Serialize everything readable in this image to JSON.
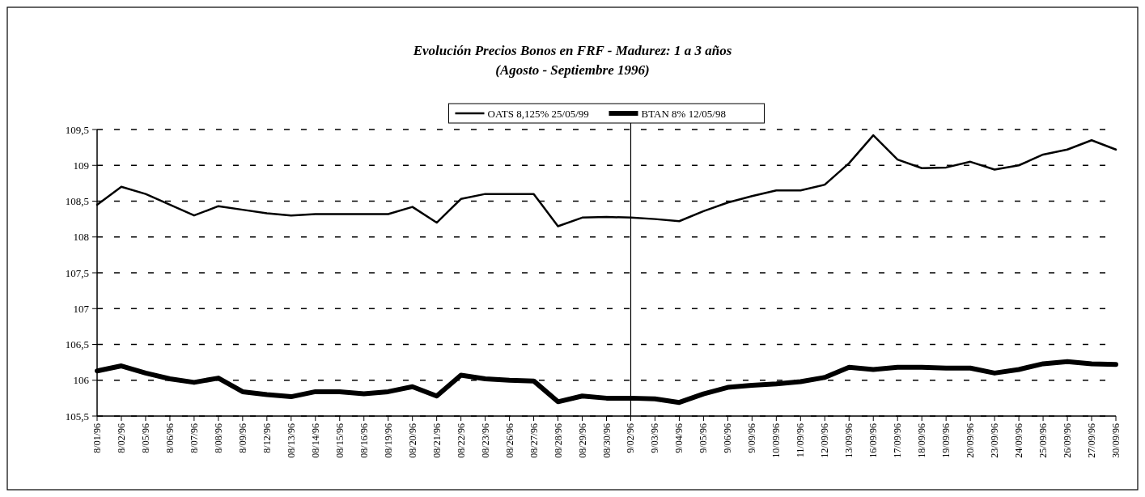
{
  "chart_data": {
    "type": "line",
    "title": "Evolución Precios Bonos en FRF - Madurez: 1 a 3 años",
    "subtitle": "(Agosto - Septiembre 1996)",
    "categories": [
      "8/01/96",
      "8/02/96",
      "8/05/96",
      "8/06/96",
      "8/07/96",
      "8/08/96",
      "8/09/96",
      "8/12/96",
      "08/13/96",
      "08/14/96",
      "08/15/96",
      "08/16/96",
      "08/19/96",
      "08/20/96",
      "08/21/96",
      "08/22/96",
      "08/23/96",
      "08/26/96",
      "08/27/96",
      "08/28/96",
      "08/29/96",
      "08/30/96",
      "9/02/96",
      "9/03/96",
      "9/04/96",
      "9/05/96",
      "9/06/96",
      "9/09/96",
      "10/09/96",
      "11/09/96",
      "12/09/96",
      "13/09/96",
      "16/09/96",
      "17/09/96",
      "18/09/96",
      "19/09/96",
      "20/09/96",
      "23/09/96",
      "24/09/96",
      "25/09/96",
      "26/09/96",
      "27/09/96",
      "30/09/96"
    ],
    "series": [
      {
        "name": "OATS 8,125% 25/05/99",
        "color": "#000000",
        "values": [
          108.45,
          108.7,
          108.6,
          108.45,
          108.3,
          108.43,
          108.38,
          108.33,
          108.3,
          108.32,
          108.32,
          108.32,
          108.32,
          108.42,
          108.2,
          108.53,
          108.6,
          108.6,
          108.6,
          108.15,
          108.27,
          108.28,
          108.27,
          108.25,
          108.22,
          108.36,
          108.48,
          108.57,
          108.65,
          108.65,
          108.73,
          109.03,
          109.42,
          109.08,
          108.96,
          108.97,
          109.05,
          108.94,
          109.0,
          109.15,
          109.22,
          109.35,
          109.22
        ]
      },
      {
        "name": "BTAN 8% 12/05/98",
        "color": "#000000",
        "values": [
          106.13,
          106.2,
          106.1,
          106.02,
          105.97,
          106.03,
          105.84,
          105.8,
          105.77,
          105.84,
          105.84,
          105.81,
          105.84,
          105.91,
          105.78,
          106.07,
          106.02,
          106.0,
          105.99,
          105.7,
          105.78,
          105.75,
          105.75,
          105.74,
          105.69,
          105.81,
          105.9,
          105.93,
          105.95,
          105.98,
          106.04,
          106.18,
          106.15,
          106.18,
          106.18,
          106.17,
          106.17,
          106.1,
          106.15,
          106.23,
          106.26,
          106.23,
          106.22
        ]
      }
    ],
    "ylim": [
      105.5,
      109.5
    ],
    "yticks": [
      {
        "value": 105.5,
        "label": "105,5"
      },
      106,
      {
        "value": 106.5,
        "label": "106,5"
      },
      107,
      {
        "value": 107.5,
        "label": "107,5"
      },
      108,
      {
        "value": 108.5,
        "label": "108,5"
      },
      109,
      {
        "value": 109.5,
        "label": "109,5"
      }
    ],
    "grid": "y",
    "legend": "top",
    "marker": "none",
    "line_style": "solid",
    "ref_lines": [
      {
        "axis": "x",
        "value": "9/02/96",
        "color": "#000000"
      }
    ]
  }
}
